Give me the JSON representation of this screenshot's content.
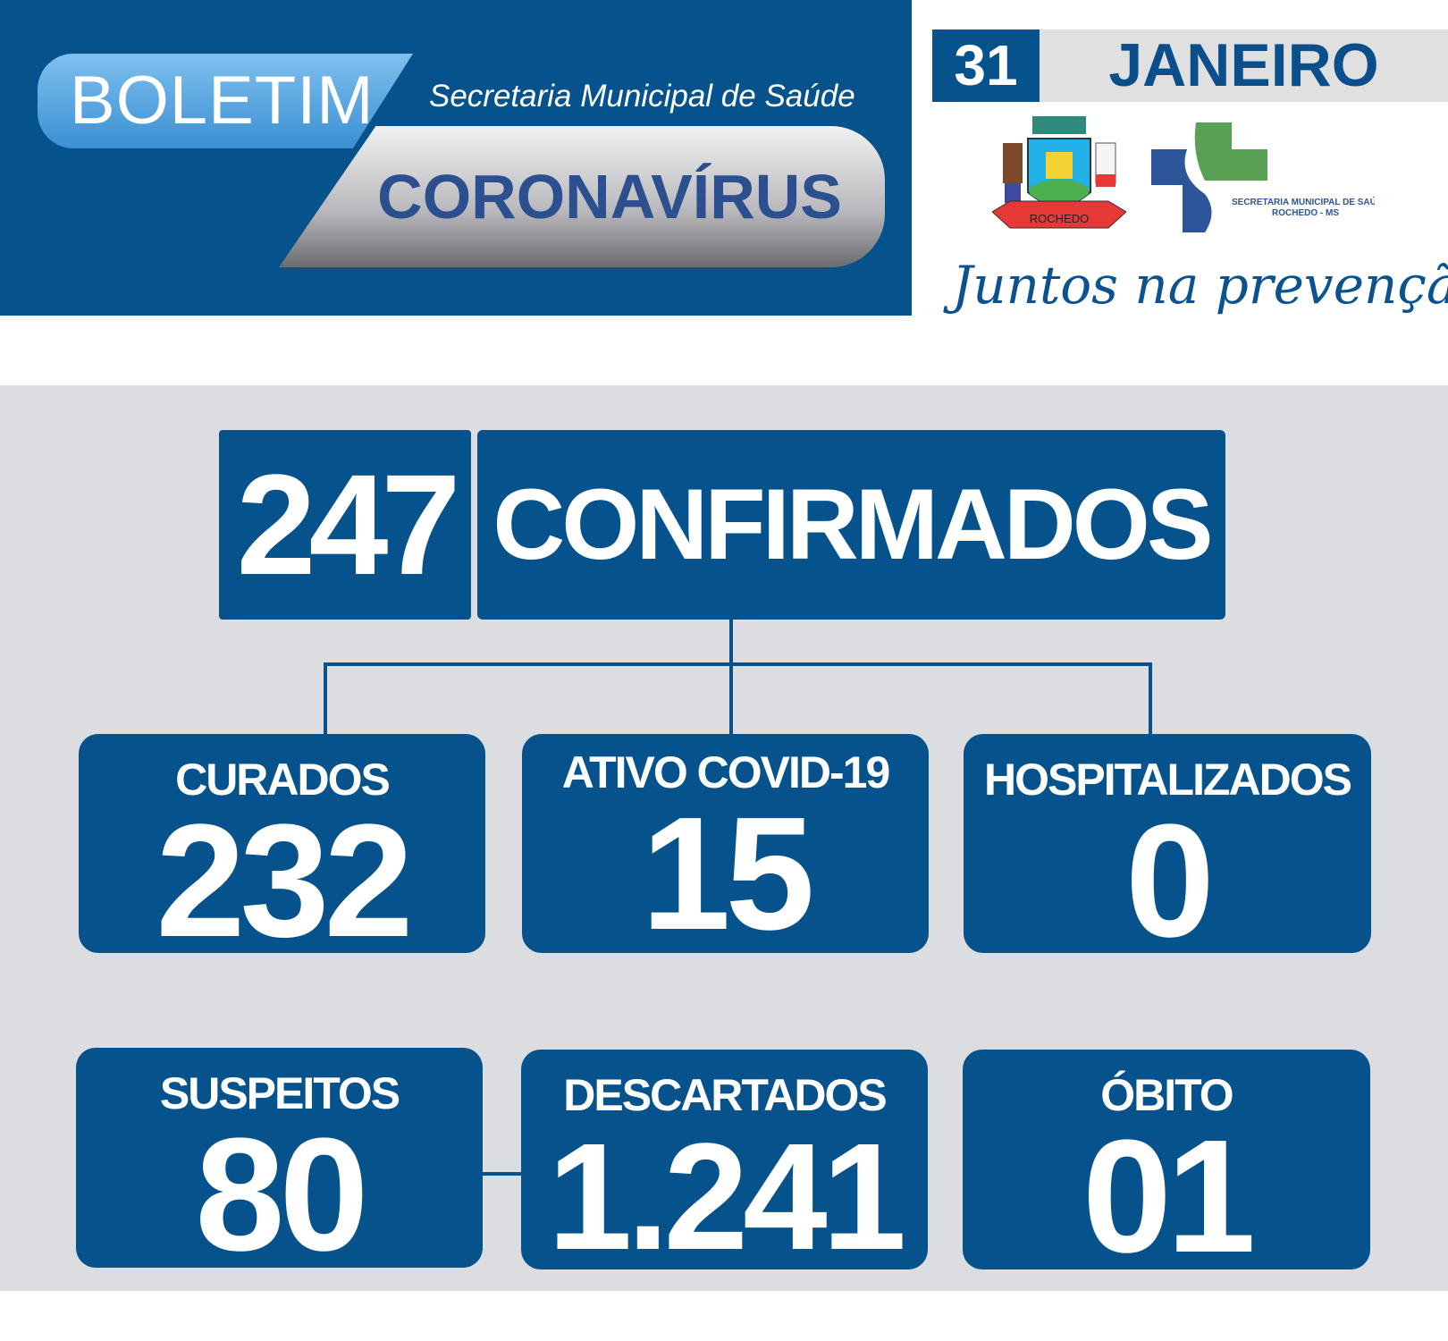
{
  "header": {
    "boletim": "BOLETIM",
    "secretaria": "Secretaria Municipal de Saúde",
    "coronavirus": "CORONAVÍRUS",
    "day": "31",
    "month": "JANEIRO",
    "logo_text": [
      "ROCHEDO",
      "SECRETARIA MUNICIPAL DE SAÚDE",
      "ROCHEDO - MS"
    ],
    "slogan": "Juntos na prevenção"
  },
  "confirmed": {
    "value": "247",
    "label": "CONFIRMADOS"
  },
  "stats": [
    {
      "label": "CURADOS",
      "value": "232"
    },
    {
      "label": "ATIVO COVID-19",
      "value": "15"
    },
    {
      "label": "HOSPITALIZADOS",
      "value": "0"
    },
    {
      "label": "SUSPEITOS",
      "value": "80"
    },
    {
      "label": "DESCARTADOS",
      "value": "1.241"
    },
    {
      "label": "ÓBITO",
      "value": "01"
    }
  ],
  "colors": {
    "primary": "#06528c",
    "background": "#dcdde0",
    "green": "#5ba155",
    "blue": "#2d5599"
  }
}
